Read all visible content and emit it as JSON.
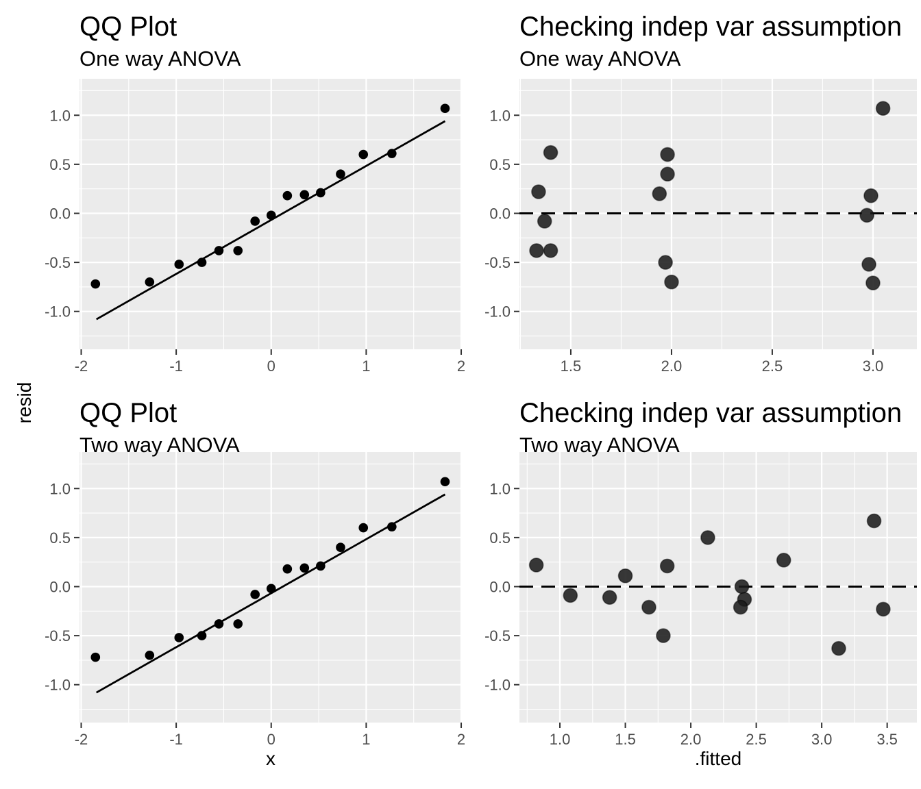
{
  "figure": {
    "background": "#FFFFFF",
    "panel_background": "#EBEBEB",
    "grid_color": "#FFFFFF",
    "axis_tick_color": "#333333",
    "axis_text_color": "#4D4D4D",
    "text_color": "#000000",
    "qq_point_color": "#000000",
    "resid_point_color": "#3C3C3C",
    "shared_y_axis_title": "resid"
  },
  "chart_data": [
    {
      "type": "scatter",
      "title": "QQ Plot",
      "subtitle": "One way ANOVA",
      "xlabel": "",
      "ylabel": "resid",
      "grid": true,
      "legend": "none",
      "point_style": "qq",
      "x_range": [
        -2.018,
        2.007
      ],
      "y_range": [
        -1.386,
        1.372
      ],
      "x_ticks": {
        "values": [
          -2,
          -1,
          0,
          1,
          2
        ],
        "labels": [
          "-2",
          "-1",
          "0",
          "1",
          "2"
        ]
      },
      "y_ticks": {
        "values": [
          1.0,
          0.5,
          0.0,
          -0.5,
          -1.0
        ],
        "labels": [
          "1.0",
          "0.5",
          "0.0",
          "-0.5",
          "-1.0"
        ]
      },
      "points": [
        [
          -1.85,
          -0.72
        ],
        [
          -1.28,
          -0.7
        ],
        [
          -0.97,
          -0.52
        ],
        [
          -0.73,
          -0.5
        ],
        [
          -0.55,
          -0.38
        ],
        [
          -0.35,
          -0.38
        ],
        [
          -0.17,
          -0.08
        ],
        [
          0.0,
          -0.02
        ],
        [
          0.17,
          0.18
        ],
        [
          0.35,
          0.19
        ],
        [
          0.52,
          0.21
        ],
        [
          0.73,
          0.4
        ],
        [
          0.97,
          0.6
        ],
        [
          1.27,
          0.61
        ],
        [
          1.83,
          1.07
        ]
      ],
      "qq_line": {
        "x": [
          -1.84,
          1.83
        ],
        "y": [
          -1.08,
          0.94
        ]
      }
    },
    {
      "type": "scatter",
      "title": "Checking indep var assumption",
      "subtitle": "One way ANOVA",
      "xlabel": "",
      "ylabel": "resid",
      "grid": true,
      "legend": "none",
      "point_style": "resid",
      "x_range": [
        1.245,
        3.218
      ],
      "y_range": [
        -1.386,
        1.372
      ],
      "x_ticks": {
        "values": [
          1.5,
          2.0,
          2.5,
          3.0
        ],
        "labels": [
          "1.5",
          "2.0",
          "2.5",
          "3.0"
        ]
      },
      "y_ticks": {
        "values": [
          1.0,
          0.5,
          0.0,
          -0.5,
          -1.0
        ],
        "labels": [
          "1.0",
          "0.5",
          "0.0",
          "-0.5",
          "-1.0"
        ]
      },
      "points": [
        [
          1.34,
          0.22
        ],
        [
          1.4,
          0.62
        ],
        [
          1.37,
          -0.08
        ],
        [
          1.33,
          -0.38
        ],
        [
          1.4,
          -0.38
        ],
        [
          1.98,
          0.6
        ],
        [
          1.98,
          0.4
        ],
        [
          1.94,
          0.2
        ],
        [
          1.97,
          -0.5
        ],
        [
          2.0,
          -0.7
        ],
        [
          2.97,
          -0.02
        ],
        [
          2.99,
          0.18
        ],
        [
          2.98,
          -0.52
        ],
        [
          3.0,
          -0.71
        ],
        [
          3.05,
          1.07
        ]
      ],
      "hline": 0
    },
    {
      "type": "scatter",
      "title": "QQ Plot",
      "subtitle": "Two way ANOVA",
      "xlabel": "x",
      "ylabel": "resid",
      "grid": true,
      "legend": "none",
      "point_style": "qq",
      "x_range": [
        -2.018,
        2.007
      ],
      "y_range": [
        -1.386,
        1.372
      ],
      "x_ticks": {
        "values": [
          -2,
          -1,
          0,
          1,
          2
        ],
        "labels": [
          "-2",
          "-1",
          "0",
          "1",
          "2"
        ]
      },
      "y_ticks": {
        "values": [
          1.0,
          0.5,
          0.0,
          -0.5,
          -1.0
        ],
        "labels": [
          "1.0",
          "0.5",
          "0.0",
          "-0.5",
          "-1.0"
        ]
      },
      "points": [
        [
          -1.85,
          -0.72
        ],
        [
          -1.28,
          -0.7
        ],
        [
          -0.97,
          -0.52
        ],
        [
          -0.73,
          -0.5
        ],
        [
          -0.55,
          -0.38
        ],
        [
          -0.35,
          -0.38
        ],
        [
          -0.17,
          -0.08
        ],
        [
          0.0,
          -0.02
        ],
        [
          0.17,
          0.18
        ],
        [
          0.35,
          0.19
        ],
        [
          0.52,
          0.21
        ],
        [
          0.73,
          0.4
        ],
        [
          0.97,
          0.6
        ],
        [
          1.27,
          0.61
        ],
        [
          1.83,
          1.07
        ]
      ],
      "qq_line": {
        "x": [
          -1.84,
          1.83
        ],
        "y": [
          -1.08,
          0.94
        ]
      }
    },
    {
      "type": "scatter",
      "title": "Checking indep var assumption",
      "subtitle": "Two way ANOVA",
      "xlabel": ".fitted",
      "ylabel": "resid",
      "grid": true,
      "legend": "none",
      "point_style": "resid",
      "x_range": [
        0.691,
        3.727
      ],
      "y_range": [
        -1.386,
        1.372
      ],
      "x_ticks": {
        "values": [
          1.0,
          1.5,
          2.0,
          2.5,
          3.0,
          3.5
        ],
        "labels": [
          "1.0",
          "1.5",
          "2.0",
          "2.5",
          "3.0",
          "3.5"
        ]
      },
      "y_ticks": {
        "values": [
          1.0,
          0.5,
          0.0,
          -0.5,
          -1.0
        ],
        "labels": [
          "1.0",
          "0.5",
          "0.0",
          "-0.5",
          "-1.0"
        ]
      },
      "points": [
        [
          0.82,
          0.22
        ],
        [
          1.08,
          -0.09
        ],
        [
          1.38,
          -0.11
        ],
        [
          1.5,
          0.11
        ],
        [
          1.68,
          -0.21
        ],
        [
          1.79,
          -0.5
        ],
        [
          1.82,
          0.21
        ],
        [
          2.13,
          0.5
        ],
        [
          2.39,
          0.0
        ],
        [
          2.41,
          -0.13
        ],
        [
          2.38,
          -0.21
        ],
        [
          2.71,
          0.27
        ],
        [
          3.13,
          -0.63
        ],
        [
          3.4,
          0.67
        ],
        [
          3.47,
          -0.23
        ]
      ],
      "hline": 0
    }
  ]
}
